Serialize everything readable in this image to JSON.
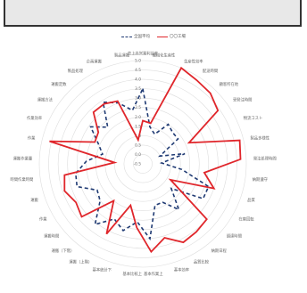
{
  "header": {
    "title": ""
  },
  "colors": {
    "series_avg": "#1f3a73",
    "series_target": "#e0262b",
    "grid": "#dddddd"
  },
  "chart_data": {
    "type": "radar",
    "title": "",
    "rmin": -0.5,
    "rmax": 5.0,
    "ticks": [
      -0.5,
      0.0,
      0.5,
      1.0,
      1.5,
      2.0,
      2.5,
      3.0,
      3.5,
      4.0,
      4.5,
      5.0
    ],
    "tick_labels": [
      "-0.5",
      "0.0",
      "0.5",
      "1.0",
      "1.5",
      "2.0",
      "2.5",
      "3.0",
      "3.5",
      "4.0",
      "4.5",
      "5.0"
    ],
    "grid": true,
    "legend_position": "top-center",
    "categories": [
      "売上高営業利益率",
      "機械化生産性",
      "生産性効率",
      "配送時間",
      "顧客所在地",
      "受発注時間",
      "物流コスト",
      "製品多様性",
      "発注処理時間",
      "納期遵守",
      "品質",
      "在庫回転",
      "調達時間",
      "納期日程",
      "品質比較",
      "基本効率",
      "基本作業上",
      "基本比較上",
      "基本統計下",
      "運搬（上階）",
      "運搬（下階）",
      "運搬時間",
      "作業",
      "運搬",
      "時間作業時間",
      "運搬作業量",
      "作業",
      "作業効率",
      "運搬方法",
      "運搬定数",
      "製品処理",
      "企画運搬",
      "製品運搬"
    ],
    "series": [
      {
        "name": "全国平均",
        "values": [
          3.5,
          1.5,
          1.2,
          2.0,
          1.8,
          1.8,
          0.5,
          1.8,
          0.5,
          1.6,
          3.2,
          3.2,
          1.5,
          2.6,
          1.8,
          1.8,
          3.5,
          2.6,
          3.2,
          2.8,
          3.6,
          2.5,
          2.3,
          3.2,
          3.1,
          2.5,
          1.7,
          2.1,
          2.9,
          2.2,
          3.4,
          3.0,
          2.4
        ]
      },
      {
        "name": "〇〇工場",
        "values": [
          1.8,
          1.7,
          5.0,
          4.8,
          4.7,
          4.4,
          2.2,
          4.8,
          4.7,
          2.8,
          3.5,
          1.2,
          4.0,
          4.1,
          4.2,
          3.6,
          4.2,
          2.9,
          1.8,
          3.7,
          2.0,
          3.8,
          3.6,
          3.9,
          3.7,
          1.0,
          4.6,
          2.3,
          2.4,
          3.3,
          3.3,
          3.1,
          0.8
        ]
      }
    ]
  }
}
